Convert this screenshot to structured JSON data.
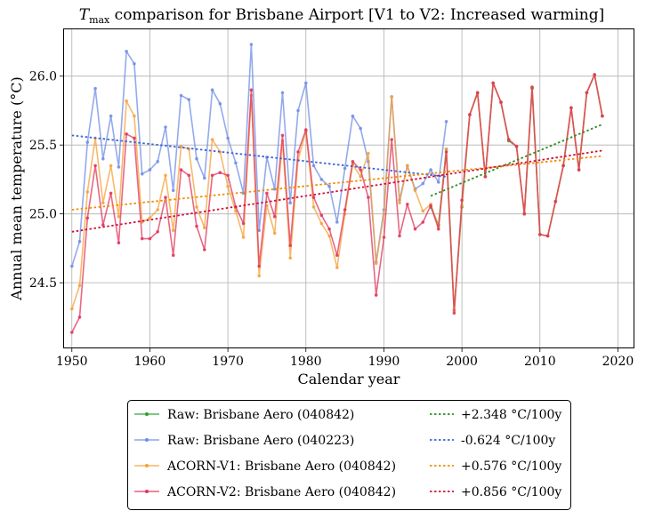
{
  "chart_data": {
    "type": "line",
    "title_symbol": "T",
    "title_subscript": "max",
    "title_rest": " comparison for Brisbane Airport   [V1 to V2: Increased warming]",
    "xlabel": "Calendar year",
    "ylabel": "Annual mean temperature (°C)",
    "xlim": [
      1949,
      2022
    ],
    "ylim": [
      24.03,
      26.34
    ],
    "xticks": [
      1950,
      1960,
      1970,
      1980,
      1990,
      2000,
      2010,
      2020
    ],
    "yticks": [
      24.5,
      25.0,
      25.5,
      26.0
    ],
    "xtick_labels": [
      "1950",
      "1960",
      "1970",
      "1980",
      "1990",
      "2000",
      "2010",
      "2020"
    ],
    "ytick_labels": [
      "24.5",
      "25.0",
      "25.5",
      "26.0"
    ],
    "grid": true,
    "legend_position": "below",
    "series": [
      {
        "name": "Raw: Brisbane Aero (040842)",
        "color": "#2ca02c",
        "x": [
          1996,
          1997,
          1998,
          1999,
          2000,
          2001,
          2002,
          2003,
          2004,
          2005,
          2006,
          2007,
          2008,
          2009,
          2010,
          2011,
          2012,
          2013,
          2014,
          2015,
          2016,
          2017,
          2018
        ],
        "y": [
          25.05,
          24.92,
          25.47,
          24.3,
          25.05,
          25.72,
          25.88,
          25.27,
          25.95,
          25.81,
          25.53,
          25.49,
          25.0,
          25.91,
          24.85,
          24.84,
          25.09,
          25.35,
          25.77,
          25.32,
          25.88,
          26.01,
          25.71
        ]
      },
      {
        "name": "Raw: Brisbane Aero (040223)",
        "color": "#6f8ee6",
        "x": [
          1950,
          1951,
          1952,
          1953,
          1954,
          1955,
          1956,
          1957,
          1958,
          1959,
          1960,
          1961,
          1962,
          1963,
          1964,
          1965,
          1966,
          1967,
          1968,
          1969,
          1970,
          1971,
          1972,
          1973,
          1974,
          1975,
          1976,
          1977,
          1978,
          1979,
          1980,
          1981,
          1982,
          1983,
          1984,
          1985,
          1986,
          1987,
          1988,
          1989,
          1990,
          1991,
          1992,
          1993,
          1994,
          1995,
          1996,
          1997,
          1998
        ],
        "y": [
          24.62,
          24.8,
          25.52,
          25.91,
          25.4,
          25.71,
          25.34,
          26.18,
          26.09,
          25.29,
          25.32,
          25.38,
          25.63,
          25.17,
          25.86,
          25.83,
          25.4,
          25.26,
          25.9,
          25.8,
          25.55,
          25.37,
          25.15,
          26.23,
          24.88,
          25.41,
          25.18,
          25.88,
          25.08,
          25.75,
          25.95,
          25.35,
          25.25,
          25.2,
          24.94,
          25.33,
          25.71,
          25.62,
          25.38,
          24.65,
          25.03,
          25.85,
          25.1,
          25.35,
          25.18,
          25.22,
          25.32,
          25.23,
          25.67
        ]
      },
      {
        "name": "ACORN-V1: Brisbane Aero (040842)",
        "color": "#f5a23a",
        "x": [
          1950,
          1951,
          1952,
          1953,
          1954,
          1955,
          1956,
          1957,
          1958,
          1959,
          1960,
          1961,
          1962,
          1963,
          1964,
          1965,
          1966,
          1967,
          1968,
          1969,
          1970,
          1971,
          1972,
          1973,
          1974,
          1975,
          1976,
          1977,
          1978,
          1979,
          1980,
          1981,
          1982,
          1983,
          1984,
          1985,
          1986,
          1987,
          1988,
          1989,
          1990,
          1991,
          1992,
          1993,
          1994,
          1995,
          1996,
          1997,
          1998,
          1999,
          2000,
          2001,
          2002,
          2003,
          2004,
          2005,
          2006,
          2007,
          2008,
          2009,
          2010,
          2011,
          2012,
          2013,
          2014,
          2015,
          2016,
          2017,
          2018
        ],
        "y": [
          24.31,
          24.48,
          25.16,
          25.55,
          25.08,
          25.35,
          24.98,
          25.82,
          25.71,
          24.94,
          24.97,
          25.03,
          25.28,
          24.88,
          25.49,
          25.47,
          25.05,
          24.9,
          25.54,
          25.45,
          25.2,
          25.02,
          24.83,
          25.86,
          24.55,
          25.06,
          24.86,
          25.53,
          24.68,
          25.39,
          25.6,
          25.05,
          24.93,
          24.84,
          24.61,
          25.0,
          25.36,
          25.27,
          25.44,
          24.64,
          25.0,
          25.85,
          25.08,
          25.35,
          25.17,
          25.02,
          25.07,
          24.91,
          25.47,
          24.3,
          25.06,
          25.72,
          25.88,
          25.27,
          25.95,
          25.81,
          25.54,
          25.49,
          25.0,
          25.92,
          24.85,
          24.84,
          25.09,
          25.35,
          25.77,
          25.32,
          25.88,
          26.01,
          25.71
        ]
      },
      {
        "name": "ACORN-V2: Brisbane Aero (040842)",
        "color": "#e0345c",
        "x": [
          1950,
          1951,
          1952,
          1953,
          1954,
          1955,
          1956,
          1957,
          1958,
          1959,
          1960,
          1961,
          1962,
          1963,
          1964,
          1965,
          1966,
          1967,
          1968,
          1969,
          1970,
          1971,
          1972,
          1973,
          1974,
          1975,
          1976,
          1977,
          1978,
          1979,
          1980,
          1981,
          1982,
          1983,
          1984,
          1985,
          1986,
          1987,
          1988,
          1989,
          1990,
          1991,
          1992,
          1993,
          1994,
          1995,
          1996,
          1997,
          1998,
          1999,
          2000,
          2001,
          2002,
          2003,
          2004,
          2005,
          2006,
          2007,
          2008,
          2009,
          2010,
          2011,
          2012,
          2013,
          2014,
          2015,
          2016,
          2017,
          2018
        ],
        "y": [
          24.14,
          24.25,
          24.97,
          25.35,
          24.92,
          25.15,
          24.79,
          25.58,
          25.55,
          24.82,
          24.82,
          24.87,
          25.12,
          24.7,
          25.32,
          25.28,
          24.91,
          24.74,
          25.28,
          25.3,
          25.28,
          25.05,
          24.93,
          25.9,
          24.62,
          25.15,
          24.98,
          25.57,
          24.77,
          25.45,
          25.61,
          25.12,
          24.99,
          24.89,
          24.7,
          25.03,
          25.38,
          25.32,
          25.12,
          24.41,
          24.83,
          25.54,
          24.84,
          25.07,
          24.89,
          24.94,
          25.06,
          24.89,
          25.45,
          24.28,
          25.1,
          25.72,
          25.88,
          25.27,
          25.95,
          25.81,
          25.54,
          25.49,
          25.0,
          25.92,
          24.85,
          24.84,
          25.09,
          25.35,
          25.77,
          25.32,
          25.88,
          26.01,
          25.71
        ]
      }
    ],
    "trends": [
      {
        "name": "+2.348 °C/100y",
        "color": "#2a8f1e",
        "x": [
          1996,
          2018
        ],
        "y": [
          25.13,
          25.65
        ]
      },
      {
        "name": "-0.624 °C/100y",
        "color": "#3a63d9",
        "x": [
          1950,
          1998
        ],
        "y": [
          25.57,
          25.27
        ]
      },
      {
        "name": "+0.576 °C/100y",
        "color": "#f08c00",
        "x": [
          1950,
          2018
        ],
        "y": [
          25.03,
          25.42
        ]
      },
      {
        "name": "+0.856 °C/100y",
        "color": "#d0103a",
        "x": [
          1950,
          2018
        ],
        "y": [
          24.87,
          25.46
        ]
      }
    ]
  }
}
